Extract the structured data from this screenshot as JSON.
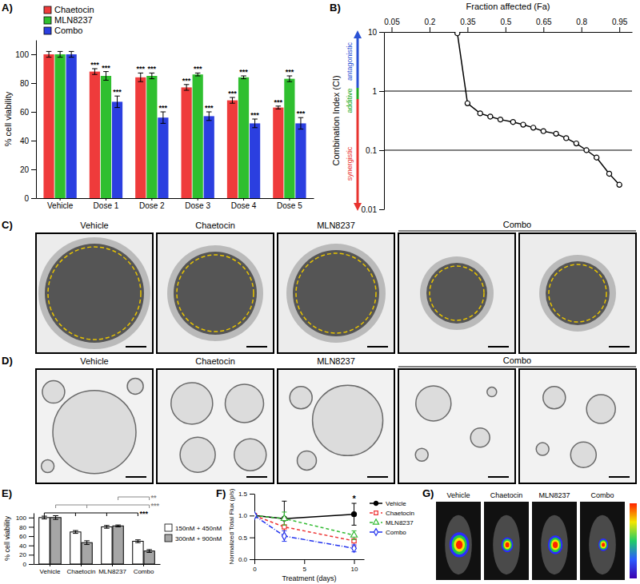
{
  "chart_data": [
    {
      "panel": "A)",
      "type": "bar",
      "y_label": "% cell viability",
      "categories": [
        "Vehicle",
        "Dose 1",
        "Dose 2",
        "Dose 3",
        "Dose 4",
        "Dose 5"
      ],
      "series": [
        {
          "name": "Chaetocin",
          "color": "#ef3b3b",
          "values": [
            100,
            88,
            84,
            77,
            68,
            63
          ],
          "errors": [
            2,
            2,
            3,
            2,
            2,
            1
          ],
          "annotations": [
            null,
            "***",
            "***",
            "***",
            "***",
            "***"
          ]
        },
        {
          "name": "MLN8237",
          "color": "#2fbf2f",
          "values": [
            100,
            85,
            85,
            86,
            84,
            83
          ],
          "errors": [
            2,
            3,
            2,
            1,
            1,
            2
          ],
          "annotations": [
            null,
            "***",
            "***",
            "***",
            "***",
            "***"
          ]
        },
        {
          "name": "Combo",
          "color": "#2b3fe0",
          "values": [
            100,
            67,
            56,
            57,
            52,
            52
          ],
          "errors": [
            2,
            4,
            4,
            3,
            3,
            4
          ],
          "annotations": [
            null,
            "***",
            "***",
            "***",
            "***",
            "***"
          ]
        }
      ],
      "ylim": [
        0,
        110
      ],
      "yticks": [
        0,
        20,
        40,
        60,
        80,
        100
      ],
      "legend": "top-left"
    },
    {
      "panel": "B)",
      "type": "line",
      "x_label": "Fraction affected (Fa)",
      "y_label": "Combination Index (CI)",
      "x": [
        0.31,
        0.35,
        0.4,
        0.44,
        0.48,
        0.53,
        0.57,
        0.61,
        0.65,
        0.7,
        0.74,
        0.78,
        0.82,
        0.86,
        0.91,
        0.95
      ],
      "values": [
        9.5,
        0.62,
        0.42,
        0.37,
        0.33,
        0.3,
        0.27,
        0.24,
        0.21,
        0.19,
        0.16,
        0.13,
        0.1,
        0.075,
        0.04,
        0.026
      ],
      "color": "#000000",
      "marker": "circle",
      "log": "y",
      "xlim": [
        0.02,
        1
      ],
      "xticks": [
        0.05,
        0.2,
        0.35,
        0.5,
        0.65,
        0.8,
        0.95
      ],
      "ylim": [
        0.01,
        10
      ],
      "yticks": [
        0.01,
        0.1,
        1,
        10
      ],
      "ref_lines": [
        1,
        0.1
      ],
      "annotations": [
        {
          "text": "antagonistic",
          "color": "#2a52d4"
        },
        {
          "text": "additive",
          "color": "#22aa22"
        },
        {
          "text": "synergistic",
          "color": "#e8332f"
        }
      ]
    },
    {
      "panel": "E)",
      "type": "bar",
      "y_label": "% cell viability",
      "categories": [
        "Vehicle",
        "Chaetocin",
        "MLN8237",
        "Combo"
      ],
      "series": [
        {
          "name": "150nM + 450nM",
          "color": "#ffffff",
          "values": [
            100,
            69,
            80,
            49
          ],
          "errors": [
            3,
            3,
            3,
            3
          ],
          "brackets": [
            {
              "text": "***",
              "from": "Vehicle",
              "to": [
                "Chaetocin",
                "MLN8237",
                "Combo"
              ],
              "color": "#000000"
            }
          ]
        },
        {
          "name": "300nM + 900nM",
          "color": "#a6a6a6",
          "values": [
            100,
            46,
            82,
            28
          ],
          "errors": [
            4,
            4,
            2,
            3
          ],
          "brackets": [
            {
              "text": "***",
              "from": "Vehicle",
              "to": [
                "Chaetocin",
                "Combo"
              ],
              "color": "#888888"
            },
            {
              "text": "**",
              "from": "MLN8237",
              "to": [
                "Combo"
              ],
              "color": "#888888"
            }
          ]
        }
      ],
      "ylim": [
        0,
        110
      ],
      "yticks": [
        0,
        20,
        40,
        60,
        80,
        100
      ],
      "legend": "right"
    },
    {
      "panel": "F)",
      "type": "line",
      "x_label": "Treatment (days)",
      "y_label": "Normalized Total Flux (p/s)",
      "x": [
        0,
        3,
        10
      ],
      "series": [
        {
          "name": "Vehicle",
          "color": "#000000",
          "marker": "circle",
          "line_style": "solid",
          "values": [
            1,
            0.93,
            1.03
          ],
          "errors": [
            0.03,
            0.4,
            0.25
          ]
        },
        {
          "name": "Chaetocin",
          "color": "#ee3333",
          "marker": "square",
          "line_style": "dashed",
          "values": [
            1,
            0.74,
            0.42
          ],
          "errors": [
            0.03,
            0.2,
            0.12
          ]
        },
        {
          "name": "MLN8237",
          "color": "#33bb33",
          "marker": "triangle",
          "line_style": "dashed",
          "values": [
            1,
            0.93,
            0.55
          ],
          "errors": [
            0.03,
            0.15,
            0.1
          ]
        },
        {
          "name": "Combo",
          "color": "#2233ee",
          "marker": "diamond",
          "line_style": "dashdot",
          "values": [
            1,
            0.53,
            0.25
          ],
          "errors": [
            0.03,
            0.12,
            0.08
          ]
        }
      ],
      "xlim": [
        0,
        11
      ],
      "xticks": [
        0,
        5,
        10
      ],
      "ylim": [
        0,
        1.5
      ],
      "yticks": [
        {
          "value": 0,
          "label": "0.0"
        },
        {
          "value": 0.5,
          "label": "0.5"
        },
        {
          "value": 1,
          "label": "1.0"
        },
        {
          "value": 1.5,
          "label": "1.5"
        }
      ],
      "legend": "right",
      "annotations": [
        {
          "text": "*",
          "x": 10
        }
      ]
    }
  ],
  "image_panels": [
    {
      "panel": "C)",
      "captions": [
        "Vehicle",
        "Chaetocin",
        "MLN8237",
        "Combo"
      ]
    },
    {
      "panel": "D)",
      "captions": [
        "Vehicle",
        "Chaetocin",
        "MLN8237",
        "Combo"
      ]
    },
    {
      "panel": "G)",
      "captions": [
        "Vehicle",
        "Chaetocin",
        "MLN8237",
        "Combo"
      ]
    }
  ]
}
